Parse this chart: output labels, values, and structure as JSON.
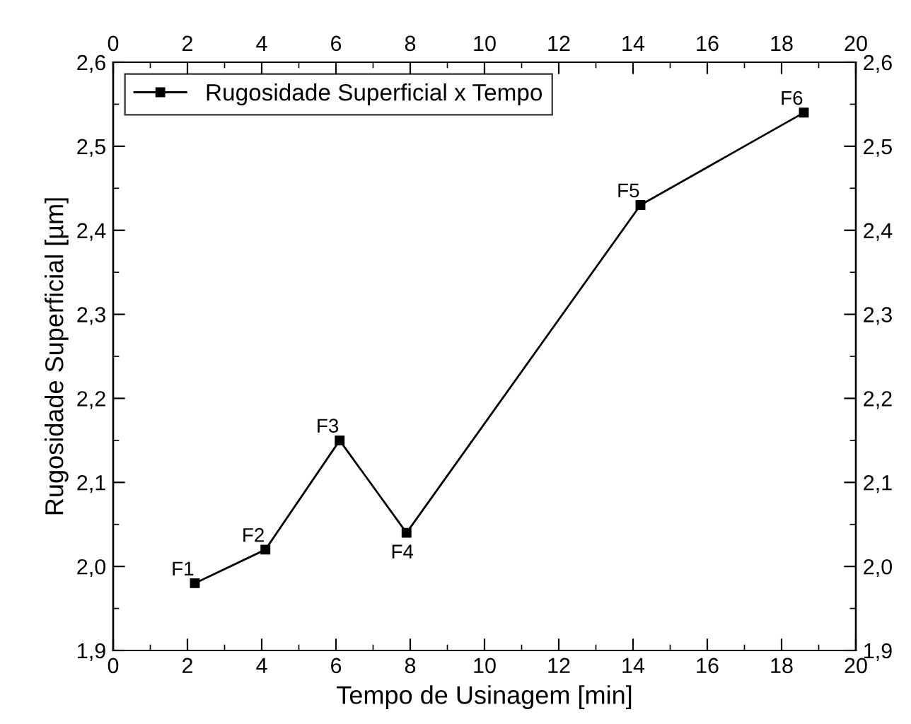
{
  "chart_data": {
    "type": "line",
    "xlabel": "Tempo de Usinagem [min]",
    "ylabel": "Rugosidade Superficial [µm]",
    "x": [
      2.2,
      4.1,
      6.1,
      7.9,
      14.2,
      18.6
    ],
    "series": [
      {
        "name": "Rugosidade Superficial x Tempo",
        "color": "#000000",
        "values": [
          1.98,
          2.02,
          2.15,
          2.04,
          2.43,
          2.54
        ]
      }
    ],
    "xlim": [
      0,
      20
    ],
    "xticks": [
      0,
      2,
      4,
      6,
      8,
      10,
      12,
      14,
      16,
      18,
      20
    ],
    "x2lim": [
      0,
      20
    ],
    "x2ticks": [
      0,
      2,
      4,
      6,
      8,
      10,
      12,
      14,
      16,
      18,
      20
    ],
    "ylim": [
      1.9,
      2.6
    ],
    "yticks": [
      {
        "value": 1.9,
        "label": "1,9"
      },
      {
        "value": 2.0,
        "label": "2,0"
      },
      {
        "value": 2.1,
        "label": "2,1"
      },
      {
        "value": 2.2,
        "label": "2,2"
      },
      {
        "value": 2.3,
        "label": "2,3"
      },
      {
        "value": 2.4,
        "label": "2,4"
      },
      {
        "value": 2.5,
        "label": "2,5"
      },
      {
        "value": 2.6,
        "label": "2,6"
      }
    ],
    "y2lim": [
      1.9,
      2.6
    ],
    "y2ticks": [
      {
        "value": 1.9,
        "label": "1,9"
      },
      {
        "value": 2.0,
        "label": "2,0"
      },
      {
        "value": 2.1,
        "label": "2,1"
      },
      {
        "value": 2.2,
        "label": "2,2"
      },
      {
        "value": 2.3,
        "label": "2,3"
      },
      {
        "value": 2.4,
        "label": "2,4"
      },
      {
        "value": 2.5,
        "label": "2,5"
      },
      {
        "value": 2.6,
        "label": "2,6"
      }
    ],
    "annotations": [
      {
        "text": "F1",
        "x": 2.2,
        "y": 1.98
      },
      {
        "text": "F2",
        "x": 4.1,
        "y": 2.02
      },
      {
        "text": "F3",
        "x": 6.1,
        "y": 2.15
      },
      {
        "text": "F4",
        "x": 7.9,
        "y": 2.04
      },
      {
        "text": "F5",
        "x": 14.2,
        "y": 2.43
      },
      {
        "text": "F6",
        "x": 18.6,
        "y": 2.54
      }
    ],
    "marker": "square",
    "line_style": "solid",
    "legend": "top left",
    "grid": false
  }
}
